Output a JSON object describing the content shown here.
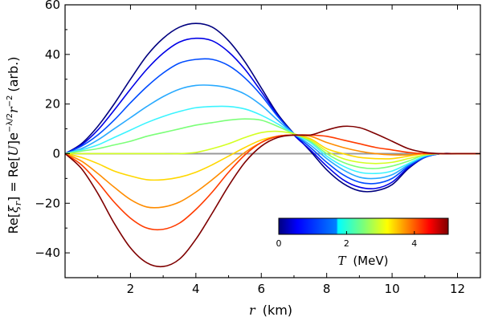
{
  "chart_data": {
    "type": "line",
    "xlabel_var": "r",
    "xlabel_unit": "(km)",
    "ylabel": "Re[ξr] = Re[U]e^(−λ/2) r^(−2) (arb.)",
    "ylabel_parts": {
      "re1": "Re[",
      "xi": "ξ",
      "sub_r": "r",
      "mid": "] = Re[",
      "u": "U",
      "close": "]",
      "e": "e",
      "exp": "−λ/2",
      "r": "r",
      "rexp": "−2",
      "arb": "(arb.)"
    },
    "xlim": [
      0,
      12.7
    ],
    "ylim": [
      -50,
      60
    ],
    "xticks": [
      2,
      4,
      6,
      8,
      10,
      12
    ],
    "xtick_labels": [
      "2",
      "4",
      "6",
      "8",
      "10",
      "12"
    ],
    "yticks": [
      -40,
      -20,
      0,
      20,
      40,
      60
    ],
    "ytick_labels": [
      "−40",
      "−20",
      "0",
      "20",
      "40",
      "60"
    ],
    "zero_line_color": "#999999",
    "x": [
      0.0,
      0.5,
      1.0,
      1.5,
      2.0,
      2.5,
      3.0,
      3.5,
      4.0,
      4.5,
      5.0,
      5.5,
      6.0,
      6.5,
      7.0,
      7.5,
      8.0,
      8.5,
      9.0,
      9.5,
      10.0,
      10.5,
      11.0,
      11.5,
      12.0,
      12.7
    ],
    "series": [
      {
        "name": "T=0.0 MeV",
        "color": "#00007f",
        "values": [
          0,
          4,
          11,
          20,
          30,
          39.5,
          46.5,
          51,
          52.5,
          51,
          45.5,
          37,
          26.5,
          16,
          8,
          1,
          -6.5,
          -12,
          -15,
          -15,
          -12.5,
          -6,
          -1.5,
          0,
          0,
          0
        ]
      },
      {
        "name": "T=0.5 MeV",
        "color": "#0000e6",
        "values": [
          0,
          3.5,
          9.5,
          17.5,
          26,
          34,
          40.5,
          45,
          46.5,
          45.5,
          41,
          34,
          25,
          15.5,
          7.5,
          1.5,
          -5,
          -10.5,
          -13.5,
          -14,
          -11.5,
          -5.5,
          -1.5,
          0,
          0,
          0
        ]
      },
      {
        "name": "T=1.0 MeV",
        "color": "#004cff",
        "values": [
          0,
          3,
          7.5,
          13.5,
          20.5,
          27,
          32.5,
          36.5,
          38,
          38,
          35.5,
          30.5,
          23.5,
          15,
          8,
          2.5,
          -3.5,
          -8.5,
          -11.5,
          -12,
          -10,
          -5,
          -1.5,
          0,
          0,
          0
        ]
      },
      {
        "name": "T=1.5 MeV",
        "color": "#29aaff",
        "values": [
          0,
          2,
          5.5,
          10,
          14.5,
          19,
          23,
          26,
          27.5,
          27.5,
          26.5,
          24,
          19.5,
          13.5,
          8,
          3.5,
          -2,
          -6.5,
          -9.5,
          -10,
          -8.5,
          -4.5,
          -1,
          0,
          0,
          0
        ]
      },
      {
        "name": "T=2.0 MeV",
        "color": "#3bf4ff",
        "values": [
          0,
          1.5,
          3.5,
          6.5,
          9.5,
          12.5,
          15,
          17,
          18.5,
          19,
          19,
          18,
          15.5,
          12,
          8,
          4.5,
          -1,
          -5,
          -7.5,
          -8,
          -7,
          -4,
          -1,
          0,
          0,
          0
        ]
      },
      {
        "name": "T=2.5 MeV",
        "color": "#7cff79",
        "values": [
          0,
          1,
          2,
          3.5,
          5,
          7,
          8.5,
          10,
          11.5,
          12.5,
          13.5,
          14,
          13.5,
          11,
          8,
          5,
          0,
          -3.5,
          -5.5,
          -6,
          -5,
          -3,
          -0.5,
          0,
          0,
          0
        ]
      },
      {
        "name": "T=3.0 MeV",
        "color": "#d4ff23",
        "values": [
          0,
          0,
          0,
          0,
          0,
          0,
          0,
          0,
          0.5,
          2,
          4,
          6.5,
          8.5,
          9,
          8,
          5.5,
          1,
          -2,
          -3.5,
          -4,
          -3.5,
          -2,
          -0.5,
          0,
          0,
          0
        ]
      },
      {
        "name": "T=3.5 MeV",
        "color": "#ffd700",
        "values": [
          0,
          -1.5,
          -4,
          -7,
          -9,
          -10.5,
          -10.5,
          -9.5,
          -7.5,
          -4.5,
          -1,
          2.5,
          5.5,
          7,
          7.5,
          6,
          2,
          0,
          -1.5,
          -2,
          -2,
          -1,
          0,
          0,
          0,
          0
        ]
      },
      {
        "name": "T=4.0 MeV",
        "color": "#ff8c00",
        "values": [
          0,
          -3,
          -8,
          -13.5,
          -18.5,
          -21.5,
          -21.5,
          -19.5,
          -15.5,
          -10.5,
          -5,
          0.5,
          4.5,
          7,
          7.5,
          7,
          4.5,
          2.5,
          1,
          0,
          -0.5,
          -0.5,
          0,
          0,
          0,
          0
        ]
      },
      {
        "name": "T=4.5 MeV",
        "color": "#ff3c00",
        "values": [
          0,
          -4.5,
          -11.5,
          -19.5,
          -26,
          -30,
          -30.5,
          -28,
          -22.5,
          -15.5,
          -7.5,
          -0.5,
          4.5,
          7,
          7.5,
          7.5,
          7,
          5.5,
          4,
          2.5,
          1.5,
          0.5,
          0,
          0,
          0,
          0
        ]
      },
      {
        "name": "T=5.0 MeV",
        "color": "#7f0000",
        "values": [
          0,
          -6,
          -16,
          -28,
          -38,
          -44,
          -45.5,
          -42.5,
          -34.5,
          -24,
          -13,
          -3.5,
          3,
          6.5,
          7.5,
          7.5,
          9.5,
          11,
          10.5,
          8,
          5,
          2,
          0.5,
          0,
          0,
          0
        ]
      }
    ],
    "colorbar": {
      "label_var": "T",
      "label_unit": "(MeV)",
      "range": [
        0,
        5
      ],
      "ticks": [
        0,
        2,
        4
      ],
      "tick_labels": [
        "0",
        "2",
        "4"
      ],
      "colormap": "jet",
      "colors": [
        "#00007f",
        "#0000e6",
        "#004cff",
        "#29aaff",
        "#3bf4ff",
        "#7cff79",
        "#d4ff23",
        "#ffd700",
        "#ff8c00",
        "#ff3c00",
        "#7f0000"
      ],
      "placement": "lower-right"
    }
  }
}
